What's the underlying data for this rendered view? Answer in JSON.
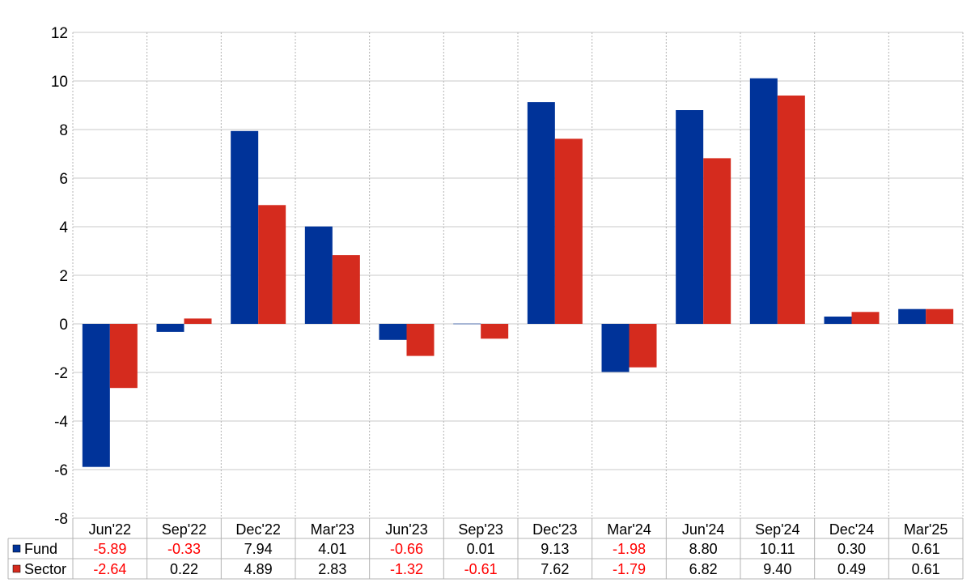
{
  "chart_data": {
    "type": "bar",
    "categories": [
      "Jun'22",
      "Sep'22",
      "Dec'22",
      "Mar'23",
      "Jun'23",
      "Sep'23",
      "Dec'23",
      "Mar'24",
      "Jun'24",
      "Sep'24",
      "Dec'24",
      "Mar'25"
    ],
    "series": [
      {
        "name": "Fund",
        "color": "#003399",
        "values": [
          -5.89,
          -0.33,
          7.94,
          4.01,
          -0.66,
          0.01,
          9.13,
          -1.98,
          8.8,
          10.11,
          0.3,
          0.61
        ],
        "labels": [
          "-5.89",
          "-0.33",
          "7.94",
          "4.01",
          "-0.66",
          "0.01",
          "9.13",
          "-1.98",
          "8.80",
          "10.11",
          "0.30",
          "0.61"
        ]
      },
      {
        "name": "Sector",
        "color": "#d52b1e",
        "values": [
          -2.64,
          0.22,
          4.89,
          2.83,
          -1.32,
          -0.61,
          7.62,
          -1.79,
          6.82,
          9.4,
          0.49,
          0.61
        ],
        "labels": [
          "-2.64",
          "0.22",
          "4.89",
          "2.83",
          "-1.32",
          "-0.61",
          "7.62",
          "-1.79",
          "6.82",
          "9.40",
          "0.49",
          "0.61"
        ]
      }
    ],
    "ylim": [
      -8,
      12
    ],
    "yticks": [
      "12",
      "10",
      "8",
      "6",
      "4",
      "2",
      "0",
      "-2",
      "-4",
      "-6",
      "-8"
    ],
    "ytick_values": [
      12,
      10,
      8,
      6,
      4,
      2,
      0,
      -2,
      -4,
      -6,
      -8
    ],
    "grid": true,
    "legend": "data-table-below",
    "negative_label_color": "#ff0000",
    "title": "",
    "xlabel": "",
    "ylabel": ""
  }
}
